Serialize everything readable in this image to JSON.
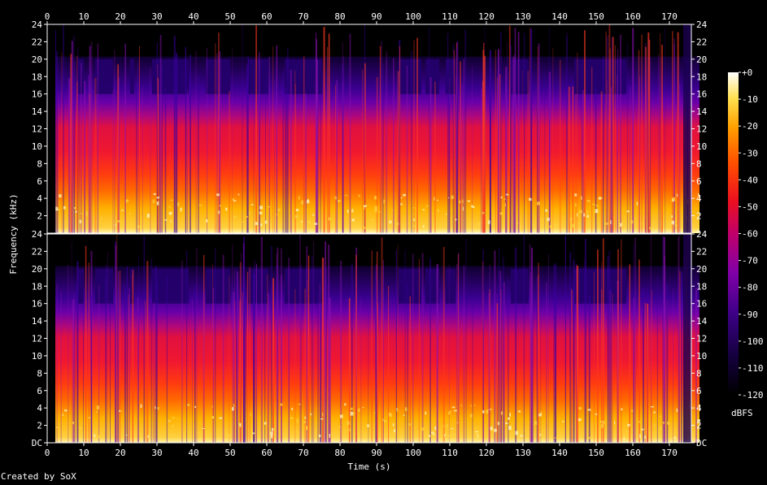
{
  "chart_data": {
    "type": "heatmap",
    "title": "",
    "xlabel": "Time (s)",
    "ylabel": "Frequency (kHz)",
    "xlim": [
      0,
      176
    ],
    "ylim": [
      0,
      24
    ],
    "x_ticks": [
      "0",
      "10",
      "20",
      "30",
      "40",
      "50",
      "60",
      "70",
      "80",
      "90",
      "100",
      "110",
      "120",
      "130",
      "140",
      "150",
      "160",
      "170"
    ],
    "y_ticks": [
      "DC",
      "2",
      "4",
      "6",
      "8",
      "10",
      "12",
      "14",
      "16",
      "18",
      "20",
      "22",
      "24"
    ],
    "channels": 2,
    "colorbar": {
      "label": "dBFS",
      "ticks": [
        "+0",
        "-10",
        "-20",
        "-30",
        "-40",
        "-50",
        "-60",
        "-70",
        "-80",
        "-90",
        "-100",
        "-110",
        "-120"
      ],
      "range": [
        -120,
        0
      ]
    },
    "colors": {
      "background": "#000000",
      "scale": [
        "#000000",
        "#1a0052",
        "#5a00a0",
        "#b0007a",
        "#e8102a",
        "#ff5a00",
        "#ffb000",
        "#ffe860",
        "#ffffff"
      ]
    },
    "footer": "Created by SoX"
  }
}
